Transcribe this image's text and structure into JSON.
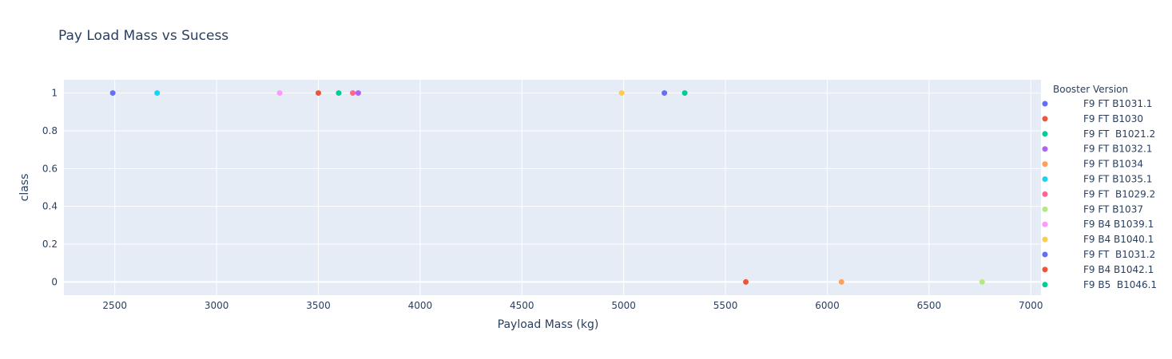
{
  "chart_data": {
    "type": "scatter",
    "title": "Pay Load Mass vs Sucess",
    "xlabel": "Payload Mass (kg)",
    "ylabel": "class",
    "xlim": [
      2250,
      7050
    ],
    "ylim": [
      -0.07,
      1.07
    ],
    "x_ticks": [
      2500,
      3000,
      3500,
      4000,
      4500,
      5000,
      5500,
      6000,
      6500,
      7000
    ],
    "y_ticks": [
      0,
      0.2,
      0.4,
      0.6,
      0.8,
      1
    ],
    "y_tick_labels": [
      "0",
      "0.2",
      "0.4",
      "0.6",
      "0.8",
      "1"
    ],
    "grid": true,
    "background_color": "#e5ecf6",
    "legend": {
      "title": "Booster Version",
      "placement": "right"
    },
    "series": [
      {
        "name": "F9 FT B1031.1",
        "color": "#636efa",
        "x": [
          2490
        ],
        "y": [
          1
        ]
      },
      {
        "name": "F9 FT B1030",
        "color": "#ef553b",
        "x": [
          3500
        ],
        "y": [
          1
        ]
      },
      {
        "name": "F9 FT  B1021.2",
        "color": "#00cc96",
        "x": [
          3600
        ],
        "y": [
          1
        ]
      },
      {
        "name": "F9 FT B1032.1",
        "color": "#ab63fa",
        "x": [
          3696
        ],
        "y": [
          1
        ]
      },
      {
        "name": "F9 FT B1034",
        "color": "#ffa15a",
        "x": [
          6070
        ],
        "y": [
          0
        ]
      },
      {
        "name": "F9 FT B1035.1",
        "color": "#19d3f3",
        "x": [
          2708
        ],
        "y": [
          1
        ]
      },
      {
        "name": "F9 FT  B1029.2",
        "color": "#ff6692",
        "x": [
          3669
        ],
        "y": [
          1
        ]
      },
      {
        "name": "F9 FT B1037",
        "color": "#b6e880",
        "x": [
          6761
        ],
        "y": [
          0
        ]
      },
      {
        "name": "F9 B4 B1039.1",
        "color": "#ff97ff",
        "x": [
          3310
        ],
        "y": [
          1
        ]
      },
      {
        "name": "F9 B4 B1040.1",
        "color": "#fecb52",
        "x": [
          4990
        ],
        "y": [
          1
        ]
      },
      {
        "name": "F9 FT  B1031.2",
        "color": "#636efa",
        "x": [
          5200
        ],
        "y": [
          1
        ]
      },
      {
        "name": "F9 B4 B1042.1",
        "color": "#ef553b",
        "x": [
          5600
        ],
        "y": [
          0
        ]
      },
      {
        "name": "F9 B5  B1046.1",
        "color": "#00cc96",
        "x": [
          5300
        ],
        "y": [
          1
        ]
      }
    ]
  }
}
